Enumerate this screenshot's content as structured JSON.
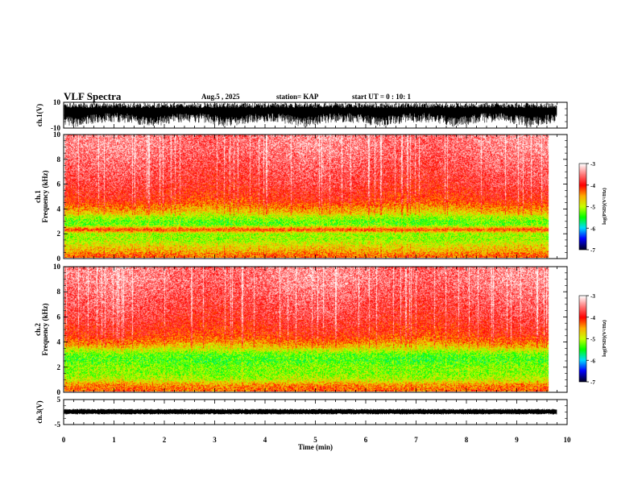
{
  "header": {
    "title": "VLF Spectra",
    "date": "Aug.5 , 2025",
    "station": "station= KAP",
    "start": "start UT =  0 : 10: 1"
  },
  "chart_data": [
    {
      "type": "line",
      "name": "ch1-waveform",
      "ylabel": "ch.1(V)",
      "ylim": [
        -10,
        10
      ],
      "yticks": [
        "10",
        "-10"
      ],
      "xlim": [
        0,
        10
      ],
      "note": "dense noisy waveform filling most of range, roughly -6 to 10 V"
    },
    {
      "type": "heatmap",
      "name": "ch1-spectrogram",
      "ylabel": "ch.1 Frequency (kHz)",
      "ylim": [
        0,
        10
      ],
      "yticks": [
        "0",
        "2",
        "4",
        "6",
        "8",
        "10"
      ],
      "xlim": [
        0,
        10
      ],
      "data_end_min": 9.8,
      "freq_khz": [
        0.2,
        0.6,
        1.0,
        1.5,
        2.0,
        2.3,
        2.7,
        3.0,
        3.4,
        3.8,
        4.2,
        4.6,
        5.0,
        6.0,
        7.0,
        8.0,
        9.0,
        10.0
      ],
      "median_log_psd": [
        -4.3,
        -4.6,
        -4.8,
        -5.1,
        -5.1,
        -4.1,
        -5.3,
        -5.3,
        -5.0,
        -4.6,
        -4.4,
        -4.1,
        -4.0,
        -3.8,
        -3.7,
        -3.6,
        -3.5,
        -3.5
      ],
      "colorbar": {
        "label": "log(PSD)(V²/Hz)",
        "range": [
          -7,
          -3
        ],
        "ticks": [
          "-3",
          "-4",
          "-5",
          "-6",
          "-7"
        ]
      }
    },
    {
      "type": "heatmap",
      "name": "ch2-spectrogram",
      "ylabel": "ch.2 Frequency (kHz)",
      "ylim": [
        0,
        10
      ],
      "yticks": [
        "0",
        "2",
        "4",
        "6",
        "8",
        "10"
      ],
      "xlim": [
        0,
        10
      ],
      "data_end_min": 9.8,
      "freq_khz": [
        0.2,
        0.6,
        1.0,
        1.5,
        2.0,
        2.5,
        3.0,
        3.5,
        4.0,
        4.5,
        5.0,
        6.0,
        7.0,
        8.0,
        9.0,
        10.0
      ],
      "median_log_psd": [
        -4.3,
        -4.5,
        -5.0,
        -5.2,
        -5.2,
        -5.4,
        -5.3,
        -4.8,
        -4.4,
        -4.1,
        -4.0,
        -3.8,
        -3.7,
        -3.6,
        -3.5,
        -3.5
      ],
      "colorbar": {
        "label": "log(PSD)(V²/Hz)",
        "range": [
          -7,
          -3
        ],
        "ticks": [
          "-3",
          "-4",
          "-5",
          "-6",
          "-7"
        ]
      }
    },
    {
      "type": "line",
      "name": "ch3-waveform",
      "ylabel": "ch.3(V)",
      "ylim": [
        -5,
        5
      ],
      "yticks": [
        "5",
        "-5"
      ],
      "xlim": [
        0,
        10
      ],
      "xlabel": "Time  (min)",
      "xticks": [
        "0",
        "1",
        "2",
        "3",
        "4",
        "5",
        "6",
        "7",
        "8",
        "9",
        "10"
      ],
      "note": "narrow band near 0.5 V, amplitude about ±0.5 V"
    }
  ],
  "colors": {
    "axis": "#000000",
    "trace": "#000000"
  }
}
